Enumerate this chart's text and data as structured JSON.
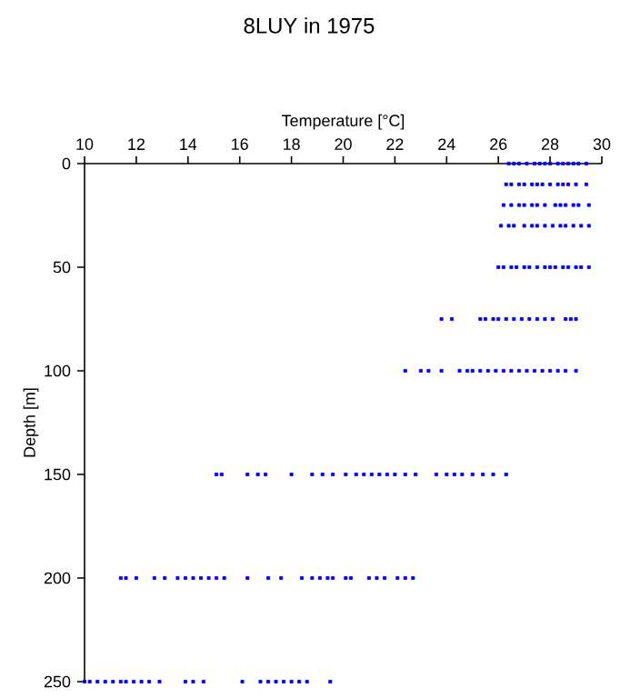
{
  "chart_data": {
    "type": "scatter",
    "title": "8LUY in 1975",
    "xlabel": "Temperature [°C]",
    "ylabel": "Depth [m]",
    "xlim": [
      10,
      30
    ],
    "xticks": [
      10,
      12,
      14,
      16,
      18,
      20,
      22,
      24,
      26,
      28,
      30
    ],
    "ylim": [
      250,
      0
    ],
    "yticks": [
      0,
      50,
      100,
      150,
      200,
      250
    ],
    "marker": "square",
    "series": [
      {
        "color": "#0000ff",
        "x": [
          26.4,
          26.6,
          26.8,
          27.1,
          27.4,
          27.6,
          27.8,
          28.0,
          28.3,
          28.5,
          28.7,
          28.9,
          29.1,
          29.4
        ],
        "values": [
          0,
          0,
          0,
          0,
          0,
          0,
          0,
          0,
          0,
          0,
          0,
          0,
          0,
          0
        ]
      },
      {
        "color": "#0000ff",
        "x": [
          26.3,
          26.5,
          26.8,
          27.0,
          27.3,
          27.5,
          27.7,
          28.0,
          28.3,
          28.5,
          28.7,
          29.0,
          29.4
        ],
        "values": [
          10,
          10,
          10,
          10,
          10,
          10,
          10,
          10,
          10,
          10,
          10,
          10,
          10
        ]
      },
      {
        "color": "#0000ff",
        "x": [
          26.2,
          26.5,
          26.8,
          27.0,
          27.3,
          27.5,
          27.8,
          28.2,
          28.4,
          28.6,
          28.9,
          29.1,
          29.5
        ],
        "values": [
          20,
          20,
          20,
          20,
          20,
          20,
          20,
          20,
          20,
          20,
          20,
          20,
          20
        ]
      },
      {
        "color": "#0000ff",
        "x": [
          26.1,
          26.4,
          26.6,
          27.0,
          27.3,
          27.5,
          27.8,
          28.1,
          28.4,
          28.6,
          28.9,
          29.2,
          29.5
        ],
        "values": [
          30,
          30,
          30,
          30,
          30,
          30,
          30,
          30,
          30,
          30,
          30,
          30,
          30
        ]
      },
      {
        "color": "#0000ff",
        "x": [
          26.0,
          26.2,
          26.5,
          26.7,
          27.0,
          27.2,
          27.5,
          27.8,
          28.0,
          28.2,
          28.5,
          28.7,
          29.0,
          29.2,
          29.5
        ],
        "values": [
          50,
          50,
          50,
          50,
          50,
          50,
          50,
          50,
          50,
          50,
          50,
          50,
          50,
          50,
          50
        ]
      },
      {
        "color": "#0000ff",
        "x": [
          23.8,
          24.2,
          25.3,
          25.5,
          25.8,
          26.0,
          26.3,
          26.6,
          26.9,
          27.2,
          27.5,
          27.8,
          28.1,
          28.6,
          28.8,
          29.0
        ],
        "values": [
          75,
          75,
          75,
          75,
          75,
          75,
          75,
          75,
          75,
          75,
          75,
          75,
          75,
          75,
          75,
          75
        ]
      },
      {
        "color": "#0000ff",
        "x": [
          22.4,
          23.0,
          23.3,
          23.8,
          24.5,
          24.8,
          25.0,
          25.3,
          25.6,
          25.9,
          26.2,
          26.5,
          26.8,
          27.1,
          27.4,
          27.7,
          28.0,
          28.3,
          28.6,
          29.0
        ],
        "values": [
          100,
          100,
          100,
          100,
          100,
          100,
          100,
          100,
          100,
          100,
          100,
          100,
          100,
          100,
          100,
          100,
          100,
          100,
          100,
          100
        ]
      },
      {
        "color": "#0000ff",
        "x": [
          15.1,
          15.3,
          16.3,
          16.7,
          17.0,
          18.0,
          18.8,
          19.2,
          19.6,
          20.1,
          20.5,
          20.8,
          21.1,
          21.4,
          21.7,
          22.0,
          22.4,
          22.8,
          23.6,
          24.0,
          24.3,
          24.6,
          25.0,
          25.4,
          25.8,
          26.3
        ],
        "values": [
          150,
          150,
          150,
          150,
          150,
          150,
          150,
          150,
          150,
          150,
          150,
          150,
          150,
          150,
          150,
          150,
          150,
          150,
          150,
          150,
          150,
          150,
          150,
          150,
          150,
          150
        ]
      },
      {
        "color": "#0000ff",
        "x": [
          11.4,
          11.6,
          12.0,
          12.7,
          13.1,
          13.6,
          13.9,
          14.2,
          14.5,
          14.8,
          15.1,
          15.4,
          16.3,
          17.1,
          17.6,
          18.4,
          18.8,
          19.1,
          19.4,
          19.6,
          20.1,
          20.3,
          21.0,
          21.3,
          21.6,
          22.1,
          22.4,
          22.7
        ],
        "values": [
          200,
          200,
          200,
          200,
          200,
          200,
          200,
          200,
          200,
          200,
          200,
          200,
          200,
          200,
          200,
          200,
          200,
          200,
          200,
          200,
          200,
          200,
          200,
          200,
          200,
          200,
          200,
          200
        ]
      },
      {
        "color": "#0000ff",
        "x": [
          10.0,
          10.2,
          10.5,
          10.8,
          11.1,
          11.4,
          11.6,
          11.9,
          12.2,
          12.5,
          12.9,
          13.9,
          14.2,
          14.6,
          16.1,
          16.8,
          17.1,
          17.4,
          17.7,
          18.0,
          18.3,
          18.6,
          19.5
        ],
        "values": [
          250,
          250,
          250,
          250,
          250,
          250,
          250,
          250,
          250,
          250,
          250,
          250,
          250,
          250,
          250,
          250,
          250,
          250,
          250,
          250,
          250,
          250,
          250
        ]
      }
    ]
  }
}
